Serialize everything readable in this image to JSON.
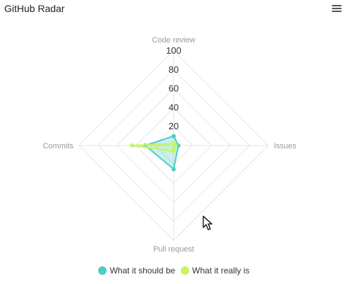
{
  "title": "GitHub Radar",
  "menu_icon": "hamburger-menu-icon",
  "chart_data": {
    "type": "radar",
    "axes": [
      "Code review",
      "Issues",
      "Pull request",
      "Commits"
    ],
    "ticks": [
      "20",
      "40",
      "60",
      "80",
      "100"
    ],
    "rmax": 100,
    "series": [
      {
        "name": "What it should be",
        "values": [
          10,
          5,
          25,
          30
        ],
        "color": "#4ecdc4"
      },
      {
        "name": "What it really is",
        "values": [
          2,
          2,
          6,
          44
        ],
        "color": "#c7f464"
      }
    ]
  }
}
